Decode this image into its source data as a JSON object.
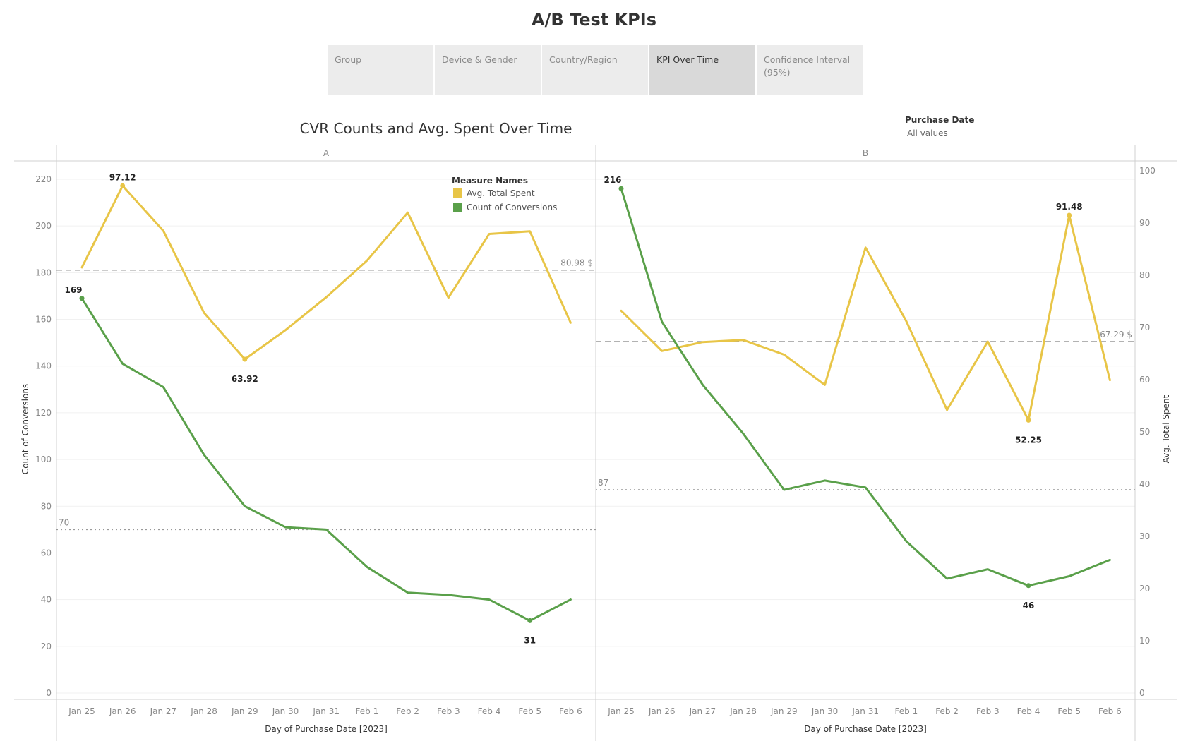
{
  "dashboard_title": "A/B Test KPIs",
  "tabs": [
    {
      "label": "Group",
      "active": false
    },
    {
      "label": "Device & Gender",
      "active": false
    },
    {
      "label": "Country/Region",
      "active": false
    },
    {
      "label": "KPI Over Time",
      "active": true
    },
    {
      "label": "Confidence Interval (95%)",
      "active": false
    }
  ],
  "filter": {
    "title": "Purchase Date",
    "value": "All values"
  },
  "colors": {
    "avg_spent": "#e8c547",
    "conversions": "#5aa04a",
    "refline": "#999999"
  },
  "chart_data": {
    "type": "line",
    "title": "CVR Counts and Avg. Spent Over Time",
    "xlabel": "Day of Purchase Date [2023]",
    "ylabel_left": "Count of Conversions",
    "ylabel_right": "Avg. Total Spent",
    "ylim_left": [
      0,
      220
    ],
    "ylim_right": [
      0,
      100
    ],
    "yticks_left": [
      0,
      20,
      40,
      60,
      80,
      100,
      120,
      140,
      160,
      180,
      200,
      220
    ],
    "yticks_right": [
      0,
      10,
      20,
      30,
      40,
      50,
      60,
      70,
      80,
      90,
      100
    ],
    "categories": [
      "Jan 25",
      "Jan 26",
      "Jan 27",
      "Jan 28",
      "Jan 29",
      "Jan 30",
      "Jan 31",
      "Feb 1",
      "Feb 2",
      "Feb 3",
      "Feb 4",
      "Feb 5",
      "Feb 6"
    ],
    "legend": {
      "title": "Measure Names",
      "entries": [
        "Avg. Total Spent",
        "Count of Conversions"
      ],
      "position": "top-right of panel A"
    },
    "panels": [
      {
        "name": "A",
        "series": [
          {
            "name": "Avg. Total Spent",
            "axis": "right",
            "values": [
              81.5,
              97.12,
              88.5,
              72.8,
              63.92,
              69.5,
              75.8,
              82.8,
              92.0,
              75.7,
              87.9,
              88.4,
              70.9
            ]
          },
          {
            "name": "Count of Conversions",
            "axis": "left",
            "values": [
              169,
              141,
              131,
              102,
              80,
              71,
              70,
              54,
              43,
              42,
              40,
              31,
              40
            ]
          }
        ],
        "reference_lines": [
          {
            "axis": "right",
            "value": 80.98,
            "label": "80.98 $",
            "style": "dashed"
          },
          {
            "axis": "left",
            "value": 70,
            "label": "70",
            "style": "dotted"
          }
        ],
        "data_labels": [
          {
            "series": "Avg. Total Spent",
            "category": "Jan 26",
            "text": "97.12"
          },
          {
            "series": "Avg. Total Spent",
            "category": "Jan 29",
            "text": "63.92"
          },
          {
            "series": "Count of Conversions",
            "category": "Jan 25",
            "text": "169"
          },
          {
            "series": "Count of Conversions",
            "category": "Feb 5",
            "text": "31"
          }
        ]
      },
      {
        "name": "B",
        "series": [
          {
            "name": "Avg. Total Spent",
            "axis": "right",
            "values": [
              73.2,
              65.5,
              67.2,
              67.6,
              64.8,
              59.0,
              85.3,
              71.2,
              54.2,
              67.3,
              52.25,
              91.48,
              59.9
            ]
          },
          {
            "name": "Count of Conversions",
            "axis": "left",
            "values": [
              216,
              159,
              132,
              111,
              87,
              91,
              88,
              65,
              49,
              53,
              46,
              50,
              57
            ]
          }
        ],
        "reference_lines": [
          {
            "axis": "right",
            "value": 67.29,
            "label": "67.29 $",
            "style": "dashed"
          },
          {
            "axis": "left",
            "value": 87,
            "label": "87",
            "style": "dotted"
          }
        ],
        "data_labels": [
          {
            "series": "Avg. Total Spent",
            "category": "Feb 5",
            "text": "91.48"
          },
          {
            "series": "Avg. Total Spent",
            "category": "Feb 4",
            "text": "52.25"
          },
          {
            "series": "Count of Conversions",
            "category": "Jan 25",
            "text": "216"
          },
          {
            "series": "Count of Conversions",
            "category": "Feb 4",
            "text": "46"
          }
        ]
      }
    ]
  }
}
